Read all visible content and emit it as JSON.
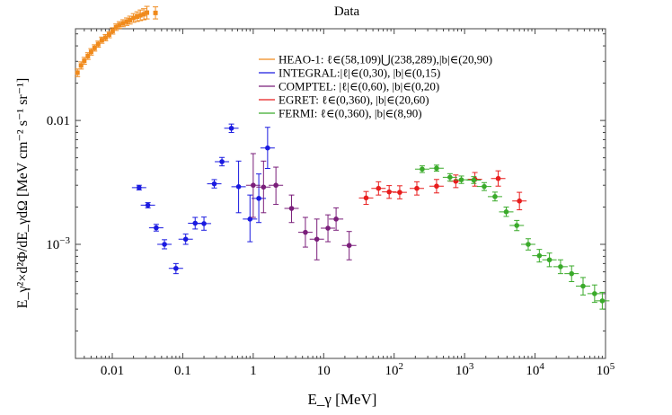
{
  "chart_data": {
    "type": "scatter",
    "title": "Data",
    "xlabel": "E_γ [MeV]",
    "ylabel": "E_γ²×d²Φ/dE_γdΩ [MeV cm⁻² s⁻¹ sr⁻¹]",
    "xscale": "log",
    "yscale": "log",
    "xlim": [
      0.003,
      100000
    ],
    "ylim": [
      0.00012,
      0.055
    ],
    "legend_position": "top-right",
    "x_ticks": [
      {
        "value": 0.01,
        "label": "0.01"
      },
      {
        "value": 0.1,
        "label": "0.1"
      },
      {
        "value": 1,
        "label": "1"
      },
      {
        "value": 10,
        "label": "10"
      },
      {
        "value": 100,
        "label": "10",
        "exp": "2"
      },
      {
        "value": 1000,
        "label": "10",
        "exp": "3"
      },
      {
        "value": 10000,
        "label": "10",
        "exp": "4"
      },
      {
        "value": 100000,
        "label": "10",
        "exp": "5"
      }
    ],
    "y_ticks": [
      {
        "value": 0.01,
        "label": "0.01"
      },
      {
        "value": 0.001,
        "label": "10",
        "exp": "−3"
      }
    ],
    "series": [
      {
        "name": "HEAO-1: ℓ∈(58,109)⋃(238,289),|b|∈(20,90)",
        "color": "#f08a1c",
        "marker": "square",
        "points": [
          [
            0.0032,
            0.0243,
            0.0226,
            0.026
          ],
          [
            0.0036,
            0.0278,
            0.026,
            0.0297
          ],
          [
            0.004,
            0.0303,
            0.0284,
            0.0323
          ],
          [
            0.0045,
            0.0331,
            0.0311,
            0.0352
          ],
          [
            0.005,
            0.0358,
            0.0337,
            0.038
          ],
          [
            0.0056,
            0.0385,
            0.0363,
            0.0408
          ],
          [
            0.0063,
            0.0413,
            0.039,
            0.0437
          ],
          [
            0.0071,
            0.0445,
            0.042,
            0.0471
          ],
          [
            0.008,
            0.0466,
            0.044,
            0.0494
          ],
          [
            0.009,
            0.0493,
            0.0465,
            0.0522
          ],
          [
            0.0101,
            0.0528,
            0.0498,
            0.056
          ],
          [
            0.0113,
            0.0566,
            0.0533,
            0.0601
          ],
          [
            0.0126,
            0.0589,
            0.0553,
            0.0627
          ],
          [
            0.0142,
            0.0609,
            0.0571,
            0.065
          ],
          [
            0.016,
            0.0627,
            0.0585,
            0.0672
          ],
          [
            0.0178,
            0.0646,
            0.06,
            0.0695
          ],
          [
            0.02,
            0.0672,
            0.062,
            0.0728
          ],
          [
            0.0225,
            0.0689,
            0.063,
            0.0754
          ],
          [
            0.025,
            0.0706,
            0.064,
            0.0779
          ],
          [
            0.028,
            0.072,
            0.065,
            0.0798
          ],
          [
            0.031,
            0.0742,
            0.066,
            0.0834
          ],
          [
            0.041,
            0.0738,
            0.066,
            0.0826
          ]
        ]
      },
      {
        "name": "INTEGRAL:|ℓ|∈(0,30), |b|∈(0,15)",
        "color": "#1a1ae0",
        "marker": "dot",
        "points": [
          [
            0.024,
            0.00287,
            0.00275,
            0.003
          ],
          [
            0.032,
            0.00207,
            0.00197,
            0.00217
          ],
          [
            0.042,
            0.00136,
            0.00128,
            0.00145
          ],
          [
            0.055,
            0.001,
            0.00092,
            0.00109
          ],
          [
            0.08,
            0.00064,
            0.00058,
            0.0007
          ],
          [
            0.11,
            0.0011,
            0.001,
            0.00121
          ],
          [
            0.15,
            0.00148,
            0.00133,
            0.00165
          ],
          [
            0.2,
            0.00147,
            0.0013,
            0.00166
          ],
          [
            0.28,
            0.00308,
            0.00285,
            0.00333
          ],
          [
            0.36,
            0.00465,
            0.0043,
            0.00503
          ],
          [
            0.49,
            0.00865,
            0.008,
            0.00935
          ],
          [
            0.62,
            0.00292,
            0.0018,
            0.0047
          ],
          [
            0.9,
            0.0016,
            0.00105,
            0.0025
          ],
          [
            1.2,
            0.00235,
            0.0015,
            0.0037
          ],
          [
            1.6,
            0.006,
            0.0041,
            0.0088
          ]
        ]
      },
      {
        "name": "COMPTEL: |ℓ|∈(0,60), |b|∈(0,20)",
        "color": "#7a1e7a",
        "marker": "dot",
        "points": [
          [
            1.0,
            0.003,
            0.00165,
            0.0054
          ],
          [
            1.4,
            0.0029,
            0.0018,
            0.0047
          ],
          [
            2.1,
            0.003,
            0.0021,
            0.0042
          ],
          [
            3.5,
            0.00195,
            0.0015,
            0.0025
          ],
          [
            5.5,
            0.00125,
            0.00095,
            0.00165
          ],
          [
            8.0,
            0.0011,
            0.00075,
            0.0016
          ],
          [
            11.5,
            0.00135,
            0.00105,
            0.00173
          ],
          [
            15.0,
            0.0016,
            0.0013,
            0.00197
          ],
          [
            23.0,
            0.00098,
            0.00075,
            0.00127
          ]
        ]
      },
      {
        "name": "EGRET: ℓ∈(0,360), |b|∈(20,60)",
        "color": "#e81c1c",
        "marker": "dot",
        "points": [
          [
            40,
            0.00237,
            0.0021,
            0.00267
          ],
          [
            60,
            0.00283,
            0.0025,
            0.0032
          ],
          [
            85,
            0.00265,
            0.00235,
            0.00298
          ],
          [
            120,
            0.00263,
            0.00233,
            0.00297
          ],
          [
            210,
            0.00283,
            0.0025,
            0.0032
          ],
          [
            400,
            0.00295,
            0.0026,
            0.00334
          ],
          [
            750,
            0.00323,
            0.00287,
            0.00363
          ],
          [
            1400,
            0.00335,
            0.00295,
            0.0038
          ],
          [
            3000,
            0.0034,
            0.00295,
            0.00392
          ],
          [
            6000,
            0.00224,
            0.0019,
            0.00263
          ]
        ]
      },
      {
        "name": "FERMI: ℓ∈(0,360), |b|∈(8,90)",
        "color": "#3aaa2a",
        "marker": "dot",
        "points": [
          [
            250,
            0.00405,
            0.0038,
            0.0043
          ],
          [
            400,
            0.00412,
            0.0039,
            0.00436
          ],
          [
            620,
            0.00348,
            0.00325,
            0.00372
          ],
          [
            900,
            0.00332,
            0.0031,
            0.00356
          ],
          [
            1350,
            0.0033,
            0.0031,
            0.00352
          ],
          [
            1900,
            0.00293,
            0.00272,
            0.00315
          ],
          [
            2700,
            0.00243,
            0.00224,
            0.00264
          ],
          [
            3900,
            0.00183,
            0.00168,
            0.002
          ],
          [
            5500,
            0.00142,
            0.00129,
            0.00156
          ],
          [
            8000,
            0.001,
            0.0009,
            0.00111
          ],
          [
            11500,
            0.00081,
            0.00072,
            0.00091
          ],
          [
            16000,
            0.00075,
            0.00066,
            0.00085
          ],
          [
            23000,
            0.00066,
            0.00058,
            0.00075
          ],
          [
            33000,
            0.00058,
            0.0005,
            0.00067
          ],
          [
            48000,
            0.00046,
            0.00039,
            0.00054
          ],
          [
            70000,
            0.0004,
            0.00034,
            0.00047
          ],
          [
            90000,
            0.00035,
            0.0003,
            0.00041
          ]
        ]
      }
    ]
  }
}
